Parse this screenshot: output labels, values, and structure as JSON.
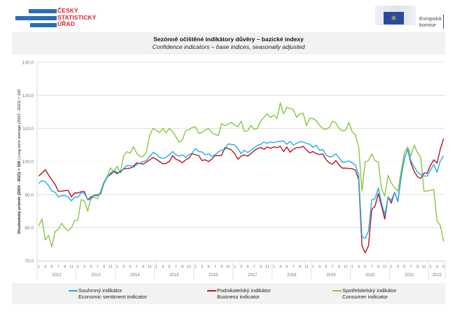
{
  "header": {
    "csu_logo_text": [
      "ČESKÝ",
      "STATISTICKÝ",
      "ÚŘAD"
    ],
    "eu_logo_text": [
      "Evropská",
      "komise"
    ]
  },
  "title": {
    "cz": "Sezónně očištěné indikátory důvěry – bazické indexy",
    "en": "Confidence indicators – base indices, seasonally adjusted"
  },
  "legend": [
    {
      "cz": "Souhrnný indikátor",
      "en": "Economic sentiment indicator",
      "color": "#1ab0e8"
    },
    {
      "cz": "Podnikatelský indikátor",
      "en": "Business indicator",
      "color": "#c0121c"
    },
    {
      "cz": "Spotřebitelský indikátor",
      "en": "Consumer indicator",
      "color": "#8cc63f"
    }
  ],
  "chart_data": {
    "type": "line",
    "ylabel_cz": "Dlouhodobý průměr (2003 - 2021) = 100",
    "ylabel_sep": " | ",
    "ylabel_en": "Long term average (2003 - 2021) = 100",
    "ylim": [
      70,
      130
    ],
    "yticks": [
      "70,0",
      "80,0",
      "90,0",
      "100,0",
      "110,0",
      "120,0",
      "130,0"
    ],
    "ytick_values": [
      70,
      80,
      90,
      100,
      110,
      120,
      130
    ],
    "grid": true,
    "x_start": "2012-01",
    "n_months": 125,
    "month_tick_labels": [
      "1",
      "3",
      "5",
      "7",
      "9",
      "11"
    ],
    "years": [
      "2012",
      "2013",
      "2014",
      "2015",
      "2016",
      "2017",
      "2018",
      "2019",
      "2020",
      "2021",
      "2022"
    ],
    "series": [
      {
        "name": "Souhrnný indikátor / Economic sentiment indicator",
        "color": "#1ab0e8",
        "values": [
          93.4,
          94.2,
          93.9,
          92.7,
          91.1,
          90.7,
          89.3,
          89.7,
          89.7,
          89.3,
          88.1,
          89.2,
          89.2,
          90.6,
          90.4,
          88.4,
          88.6,
          89.9,
          90.0,
          90.2,
          93.4,
          95.3,
          96.5,
          97.2,
          96.8,
          96.6,
          97.9,
          98.8,
          98.8,
          98.2,
          99.1,
          99.5,
          100.0,
          100.3,
          101.6,
          102.7,
          102.3,
          101.2,
          101.0,
          101.2,
          102.1,
          103.0,
          102.1,
          101.6,
          102.0,
          101.2,
          102.1,
          102.5,
          103.9,
          103.0,
          102.9,
          102.0,
          102.3,
          101.6,
          102.0,
          102.9,
          103.4,
          103.6,
          105.3,
          105.2,
          105.0,
          103.9,
          102.4,
          103.4,
          102.7,
          103.4,
          104.1,
          104.9,
          105.2,
          105.9,
          105.5,
          105.9,
          105.7,
          106.0,
          106.1,
          106.2,
          105.2,
          106.1,
          105.0,
          105.5,
          106.0,
          105.9,
          105.5,
          105.2,
          104.3,
          104.9,
          103.4,
          103.6,
          102.0,
          101.4,
          101.6,
          102.3,
          101.1,
          99.8,
          99.8,
          100.2,
          99.6,
          98.9,
          96.0,
          77.3,
          76.8,
          79.0,
          88.5,
          88.7,
          92.0,
          87.4,
          83.9,
          89.2,
          88.3,
          90.6,
          88.0,
          95.2,
          100.9,
          103.7,
          100.2,
          98.4,
          96.8,
          96.0,
          95.6,
          95.6,
          97.4,
          99.1,
          96.7,
          100.2,
          101.7
        ]
      },
      {
        "name": "Podnikatelský indikátor / Business indicator",
        "color": "#c0121c",
        "values": [
          95.6,
          96.5,
          97.5,
          95.9,
          94.5,
          93.1,
          91.0,
          91.0,
          91.2,
          91.3,
          89.3,
          90.5,
          90.5,
          90.9,
          90.9,
          88.4,
          89.3,
          89.7,
          89.8,
          90.4,
          93.5,
          95.3,
          96.1,
          97.0,
          96.3,
          97.0,
          97.7,
          97.9,
          98.0,
          98.6,
          99.6,
          99.4,
          99.2,
          99.8,
          100.5,
          101.2,
          100.7,
          100.0,
          99.3,
          99.4,
          100.0,
          101.8,
          100.7,
          100.3,
          99.6,
          100.5,
          101.0,
          102.4,
          102.0,
          101.8,
          100.3,
          100.5,
          100.0,
          100.7,
          101.8,
          101.8,
          101.8,
          104.2,
          103.9,
          103.5,
          102.4,
          100.7,
          101.6,
          102.0,
          101.6,
          102.4,
          103.3,
          103.9,
          104.2,
          103.7,
          104.4,
          104.0,
          104.4,
          104.2,
          104.6,
          103.0,
          104.4,
          102.8,
          103.7,
          104.2,
          104.2,
          104.6,
          103.5,
          102.6,
          103.0,
          102.4,
          102.1,
          102.3,
          100.6,
          99.6,
          99.2,
          100.3,
          98.9,
          98.0,
          98.0,
          97.9,
          97.8,
          97.4,
          94.6,
          74.5,
          72.4,
          74.5,
          85.5,
          86.5,
          90.3,
          86.5,
          82.6,
          89.3,
          87.4,
          90.7,
          87.9,
          95.3,
          100.9,
          103.7,
          99.5,
          97.0,
          95.4,
          94.9,
          96.5,
          96.5,
          98.8,
          100.5,
          99.5,
          103.7,
          106.9
        ]
      },
      {
        "name": "Spotřebitelský indikátor / Consumer indicator",
        "color": "#8cc63f",
        "values": [
          80.5,
          82.6,
          76.3,
          77.7,
          74.2,
          78.8,
          79.5,
          81.3,
          80.0,
          79.0,
          80.0,
          82.1,
          82.3,
          88.5,
          88.0,
          85.0,
          89.0,
          89.2,
          88.8,
          91.0,
          93.9,
          95.5,
          98.1,
          96.8,
          98.6,
          96.6,
          101.6,
          103.0,
          102.5,
          104.5,
          102.5,
          101.5,
          101.5,
          103.0,
          108.0,
          110.0,
          109.5,
          108.7,
          110.0,
          108.7,
          110.0,
          109.0,
          107.5,
          105.8,
          106.5,
          109.3,
          109.6,
          110.3,
          110.5,
          108.5,
          108.8,
          109.5,
          110.0,
          108.7,
          108.2,
          107.8,
          111.5,
          110.8,
          111.2,
          111.8,
          111.0,
          110.5,
          112.2,
          109.1,
          109.3,
          110.9,
          109.7,
          110.0,
          112.3,
          113.3,
          114.4,
          113.3,
          114.0,
          113.0,
          117.7,
          114.4,
          116.4,
          116.0,
          115.7,
          113.3,
          114.4,
          114.6,
          110.9,
          113.0,
          113.0,
          112.3,
          111.0,
          110.0,
          109.7,
          110.3,
          112.2,
          111.7,
          110.0,
          109.3,
          109.4,
          111.8,
          109.0,
          108.0,
          104.4,
          91.0,
          99.8,
          100.3,
          102.3,
          100.3,
          99.8,
          91.7,
          89.6,
          95.8,
          93.5,
          92.1,
          91.0,
          97.0,
          102.7,
          104.4,
          101.6,
          104.9,
          102.7,
          101.3,
          91.0,
          91.1,
          91.3,
          91.5,
          82.1,
          80.7,
          75.8
        ]
      }
    ]
  }
}
